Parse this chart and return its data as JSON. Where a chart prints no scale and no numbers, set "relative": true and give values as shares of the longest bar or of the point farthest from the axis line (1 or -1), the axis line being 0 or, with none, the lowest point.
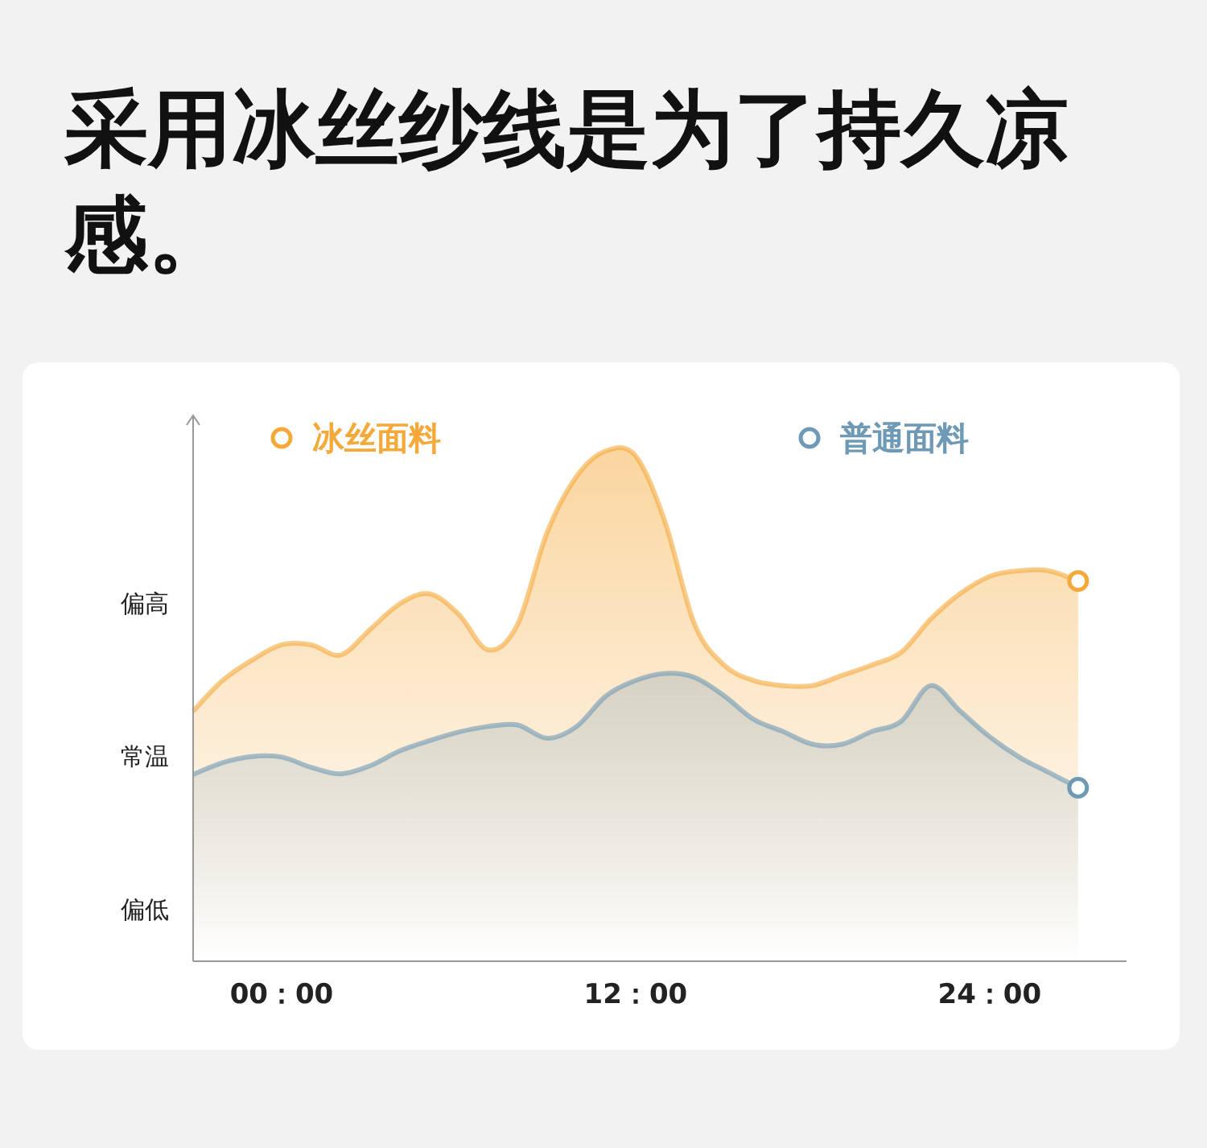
{
  "chart_data": {
    "type": "area",
    "title": "采用冰丝纱线是为了持久凉感。",
    "relative": true,
    "categories": [
      null,
      null,
      null,
      "00：00",
      null,
      null,
      null,
      null,
      null,
      null,
      null,
      null,
      null,
      null,
      null,
      "12：00",
      null,
      null,
      null,
      null,
      null,
      null,
      null,
      null,
      null,
      null,
      null,
      "24：00",
      null,
      null,
      null
    ],
    "annotations": [
      "偏低",
      "常温",
      "偏高"
    ],
    "legend": "top",
    "series": [
      {
        "name": "冰丝面料",
        "color": "#f5a93a",
        "values": [
          0.49,
          0.55,
          0.59,
          0.62,
          0.62,
          0.6,
          0.65,
          0.7,
          0.72,
          0.68,
          0.61,
          0.66,
          0.84,
          0.95,
          1,
          0.99,
          0.86,
          0.66,
          0.58,
          0.55,
          0.54,
          0.54,
          0.56,
          0.58,
          0.605,
          0.67,
          0.72,
          0.754,
          0.765,
          0.765,
          0.745
        ]
      },
      {
        "name": "普通面料",
        "color": "#6f9ab5",
        "values": [
          0.366,
          0.389,
          0.401,
          0.4,
          0.38,
          0.367,
          0.383,
          0.412,
          0.432,
          0.449,
          0.46,
          0.463,
          0.437,
          0.46,
          0.52,
          0.55,
          0.564,
          0.556,
          0.52,
          0.474,
          0.45,
          0.425,
          0.425,
          0.45,
          0.47,
          0.54,
          0.49,
          0.44,
          0.4,
          0.37,
          0.34
        ]
      }
    ]
  }
}
